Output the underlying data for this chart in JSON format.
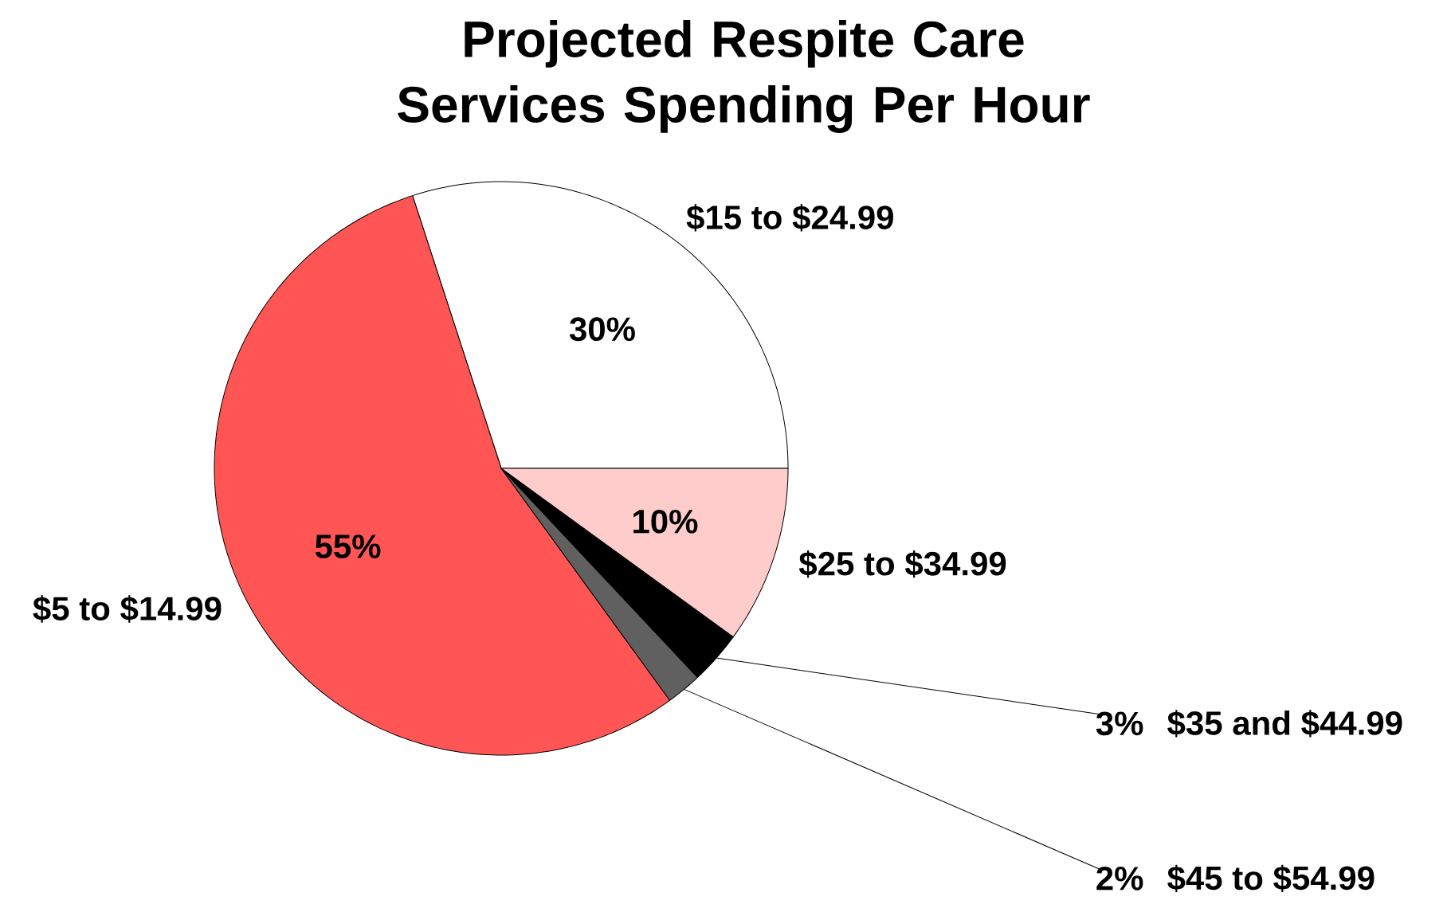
{
  "chart_data": {
    "type": "pie",
    "title": "Projected Respite Care Services Spending Per Hour",
    "categories": [
      "$15 to $24.99",
      "$5 to $14.99",
      "$45 to $54.99",
      "$35 and $44.99",
      "$25 to $34.99"
    ],
    "values": [
      30,
      55,
      2,
      3,
      10
    ],
    "colors": [
      "#ffffff",
      "#ff5555",
      "#606060",
      "#000000",
      "#ffcccc"
    ],
    "value_labels": [
      "30%",
      "55%",
      "2%",
      "3%",
      "10%"
    ]
  }
}
